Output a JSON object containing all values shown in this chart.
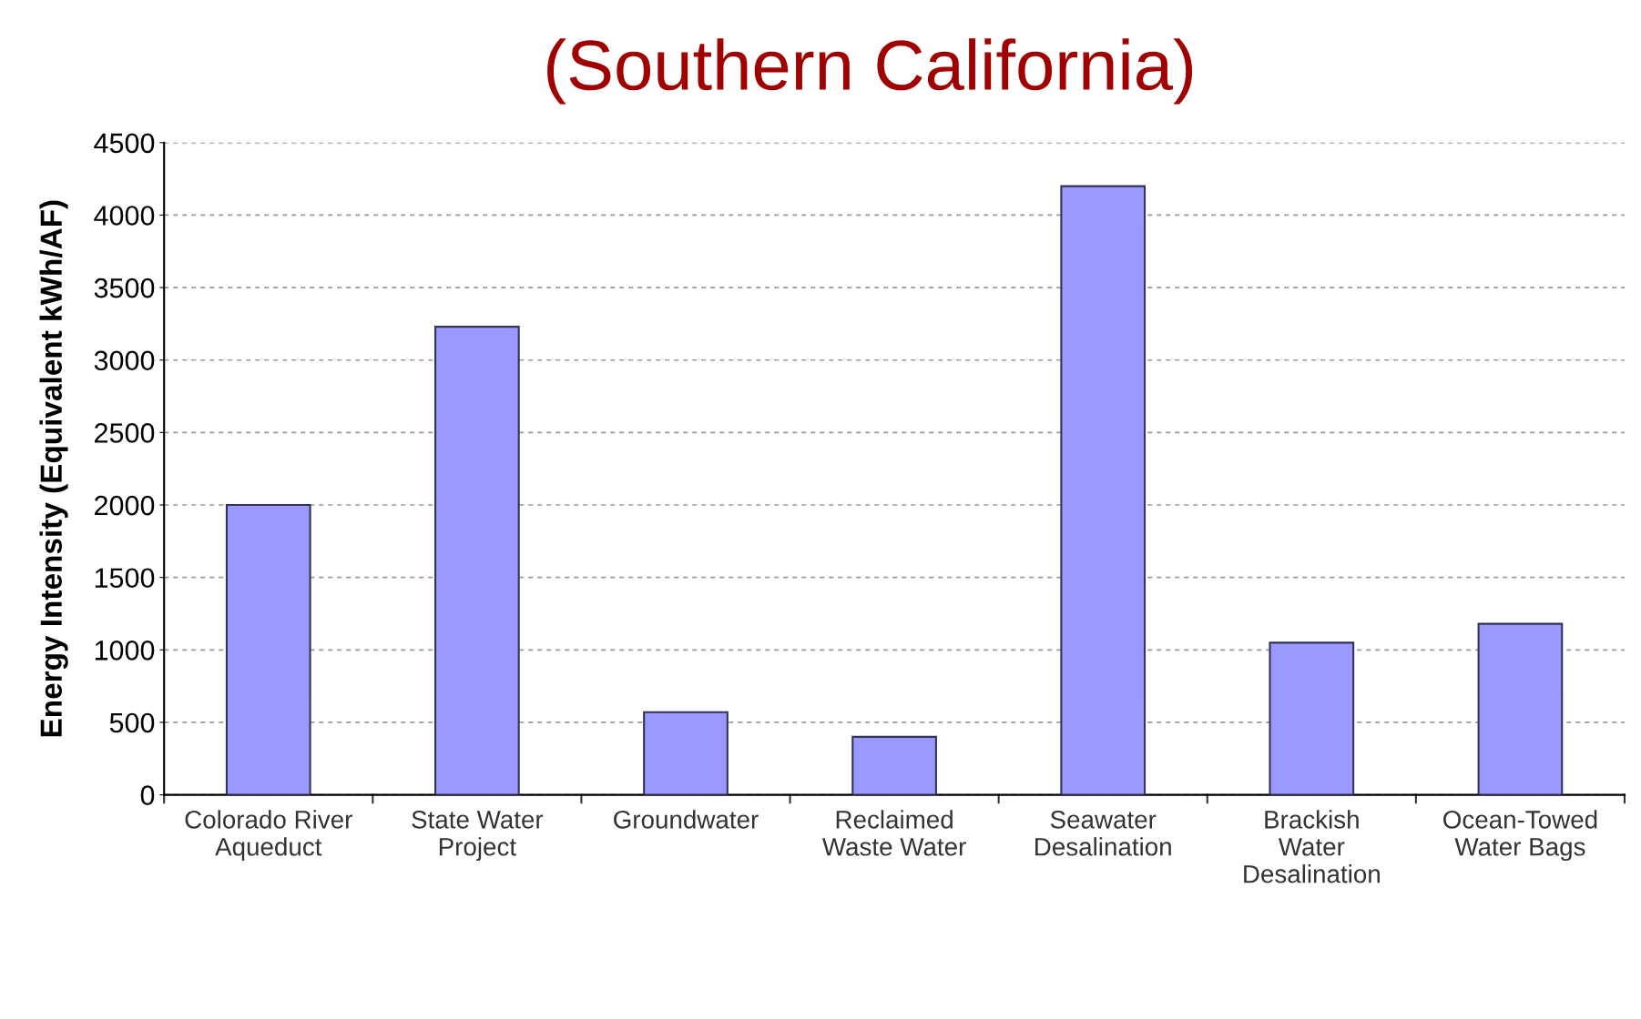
{
  "chart_data": {
    "type": "bar",
    "title": "(Southern California)",
    "ylabel": "Energy Intensity (Equivalent kWh/AF)",
    "categories": [
      "Colorado River\nAqueduct",
      "State Water\nProject",
      "Groundwater",
      "Reclaimed\nWaste Water",
      "Seawater\nDesalination",
      "Brackish\nWater\nDesalination",
      "Ocean-Towed\nWater Bags"
    ],
    "values": [
      2000,
      3230,
      570,
      400,
      4200,
      1050,
      1180
    ],
    "color": "#9999ff",
    "ylim": [
      0,
      4500
    ],
    "yticks": [
      0,
      500,
      1000,
      1500,
      2000,
      2500,
      3000,
      3500,
      4000,
      4500
    ],
    "grid": "y"
  }
}
